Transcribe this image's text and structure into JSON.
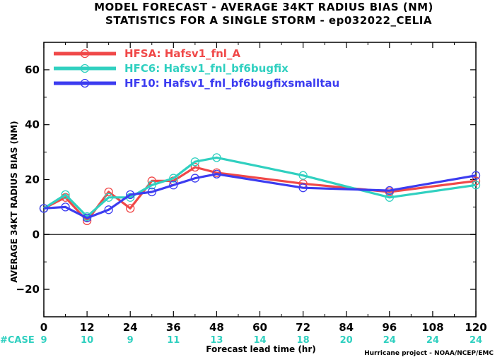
{
  "chart_data": {
    "type": "line",
    "title_lines": [
      "MODEL FORECAST - AVERAGE 34KT RADIUS BIAS (NM)",
      "STATISTICS FOR A SINGLE STORM - ep032022_CELIA"
    ],
    "ylabel": "AVERAGE 34KT RADIUS BIAS (NM)",
    "xlabel": "Forecast lead time (hr)",
    "credit": "Hurricane project - NOAA/NCEP/EMC",
    "xlim": [
      0,
      120
    ],
    "ylim": [
      -30,
      70
    ],
    "xticks": [
      0,
      12,
      24,
      36,
      48,
      60,
      72,
      84,
      96,
      108,
      120
    ],
    "yticks": [
      -20,
      0,
      20,
      40,
      60
    ],
    "ytick_labels": [
      "−20",
      "0",
      "20",
      "40",
      "60"
    ],
    "zero_line": true,
    "legend_position": "top-left",
    "case_label": "#CASE",
    "cases": [
      {
        "x": 0,
        "n": "9"
      },
      {
        "x": 12,
        "n": "10"
      },
      {
        "x": 24,
        "n": "9"
      },
      {
        "x": 36,
        "n": "11"
      },
      {
        "x": 48,
        "n": "13"
      },
      {
        "x": 60,
        "n": "14"
      },
      {
        "x": 72,
        "n": "18"
      },
      {
        "x": 84,
        "n": "20"
      },
      {
        "x": 96,
        "n": "24"
      },
      {
        "x": 108,
        "n": "24"
      },
      {
        "x": 120,
        "n": "24"
      }
    ],
    "series": [
      {
        "name": "HFSA: Hafsv1_fnl_A",
        "color": "#f04848",
        "points": [
          [
            0,
            9.5
          ],
          [
            6,
            13.5
          ],
          [
            12,
            5
          ],
          [
            18,
            15.5
          ],
          [
            24,
            9.5
          ],
          [
            30,
            19.5
          ],
          [
            36,
            19.5
          ],
          [
            42,
            24.5
          ],
          [
            48,
            22.5
          ],
          [
            72,
            18.5
          ],
          [
            96,
            15.5
          ],
          [
            120,
            19.5
          ]
        ]
      },
      {
        "name": "HFC6: Hafsv1_fnl_bf6bugfix",
        "color": "#30d0c0",
        "points": [
          [
            0,
            9.5
          ],
          [
            6,
            14.5
          ],
          [
            12,
            6.5
          ],
          [
            18,
            13.5
          ],
          [
            24,
            13.5
          ],
          [
            30,
            18
          ],
          [
            36,
            20.5
          ],
          [
            42,
            26.5
          ],
          [
            48,
            28
          ],
          [
            72,
            21.5
          ],
          [
            96,
            13.5
          ],
          [
            120,
            18
          ]
        ]
      },
      {
        "name": "HF10: Hafsv1_fnl_bf6bugfixsmalltau",
        "color": "#3c3cf0",
        "points": [
          [
            0,
            9.5
          ],
          [
            6,
            10
          ],
          [
            12,
            6
          ],
          [
            18,
            9
          ],
          [
            24,
            14.5
          ],
          [
            30,
            15.5
          ],
          [
            36,
            18
          ],
          [
            42,
            20.5
          ],
          [
            48,
            22
          ],
          [
            72,
            17
          ],
          [
            96,
            16
          ],
          [
            120,
            21.5
          ]
        ]
      }
    ]
  }
}
